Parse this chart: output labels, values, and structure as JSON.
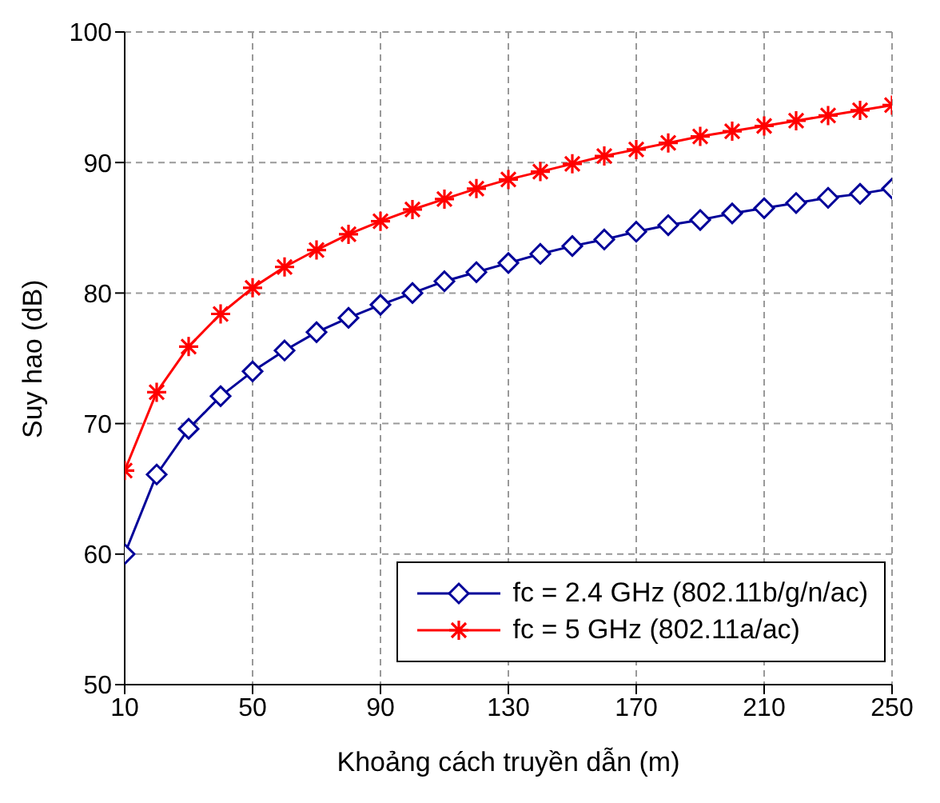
{
  "chart_data": {
    "type": "line",
    "xlabel": "Khoảng cách truyền dẫn (m)",
    "ylabel": "Suy hao (dB)",
    "x": [
      10,
      20,
      30,
      40,
      50,
      60,
      70,
      80,
      90,
      100,
      110,
      120,
      130,
      140,
      150,
      160,
      170,
      180,
      190,
      200,
      210,
      220,
      230,
      240,
      250
    ],
    "series": [
      {
        "name": "fc = 2.4 GHz (802.11b/g/n/ac)",
        "color": "#000099",
        "marker": "diamond",
        "values": [
          60.0,
          66.1,
          69.6,
          72.1,
          74.0,
          75.6,
          77.0,
          78.1,
          79.1,
          80.0,
          80.9,
          81.6,
          82.3,
          83.0,
          83.6,
          84.1,
          84.7,
          85.2,
          85.6,
          86.1,
          86.5,
          86.9,
          87.3,
          87.6,
          88.0
        ]
      },
      {
        "name": "fc = 5 GHz (802.11a/ac)",
        "color": "#ff0000",
        "marker": "cross",
        "values": [
          66.4,
          72.4,
          75.9,
          78.4,
          80.4,
          82.0,
          83.3,
          84.5,
          85.5,
          86.4,
          87.2,
          88.0,
          88.7,
          89.3,
          89.9,
          90.5,
          91.0,
          91.5,
          92.0,
          92.4,
          92.8,
          93.2,
          93.6,
          94.0,
          94.4
        ]
      }
    ],
    "xlim": [
      10,
      250
    ],
    "xticks": [
      10,
      50,
      90,
      130,
      170,
      210,
      250
    ],
    "ylim": [
      50,
      100
    ],
    "yticks": [
      50,
      60,
      70,
      80,
      90,
      100
    ],
    "grid": true,
    "legend": "bottom right",
    "line_style": "solid"
  }
}
